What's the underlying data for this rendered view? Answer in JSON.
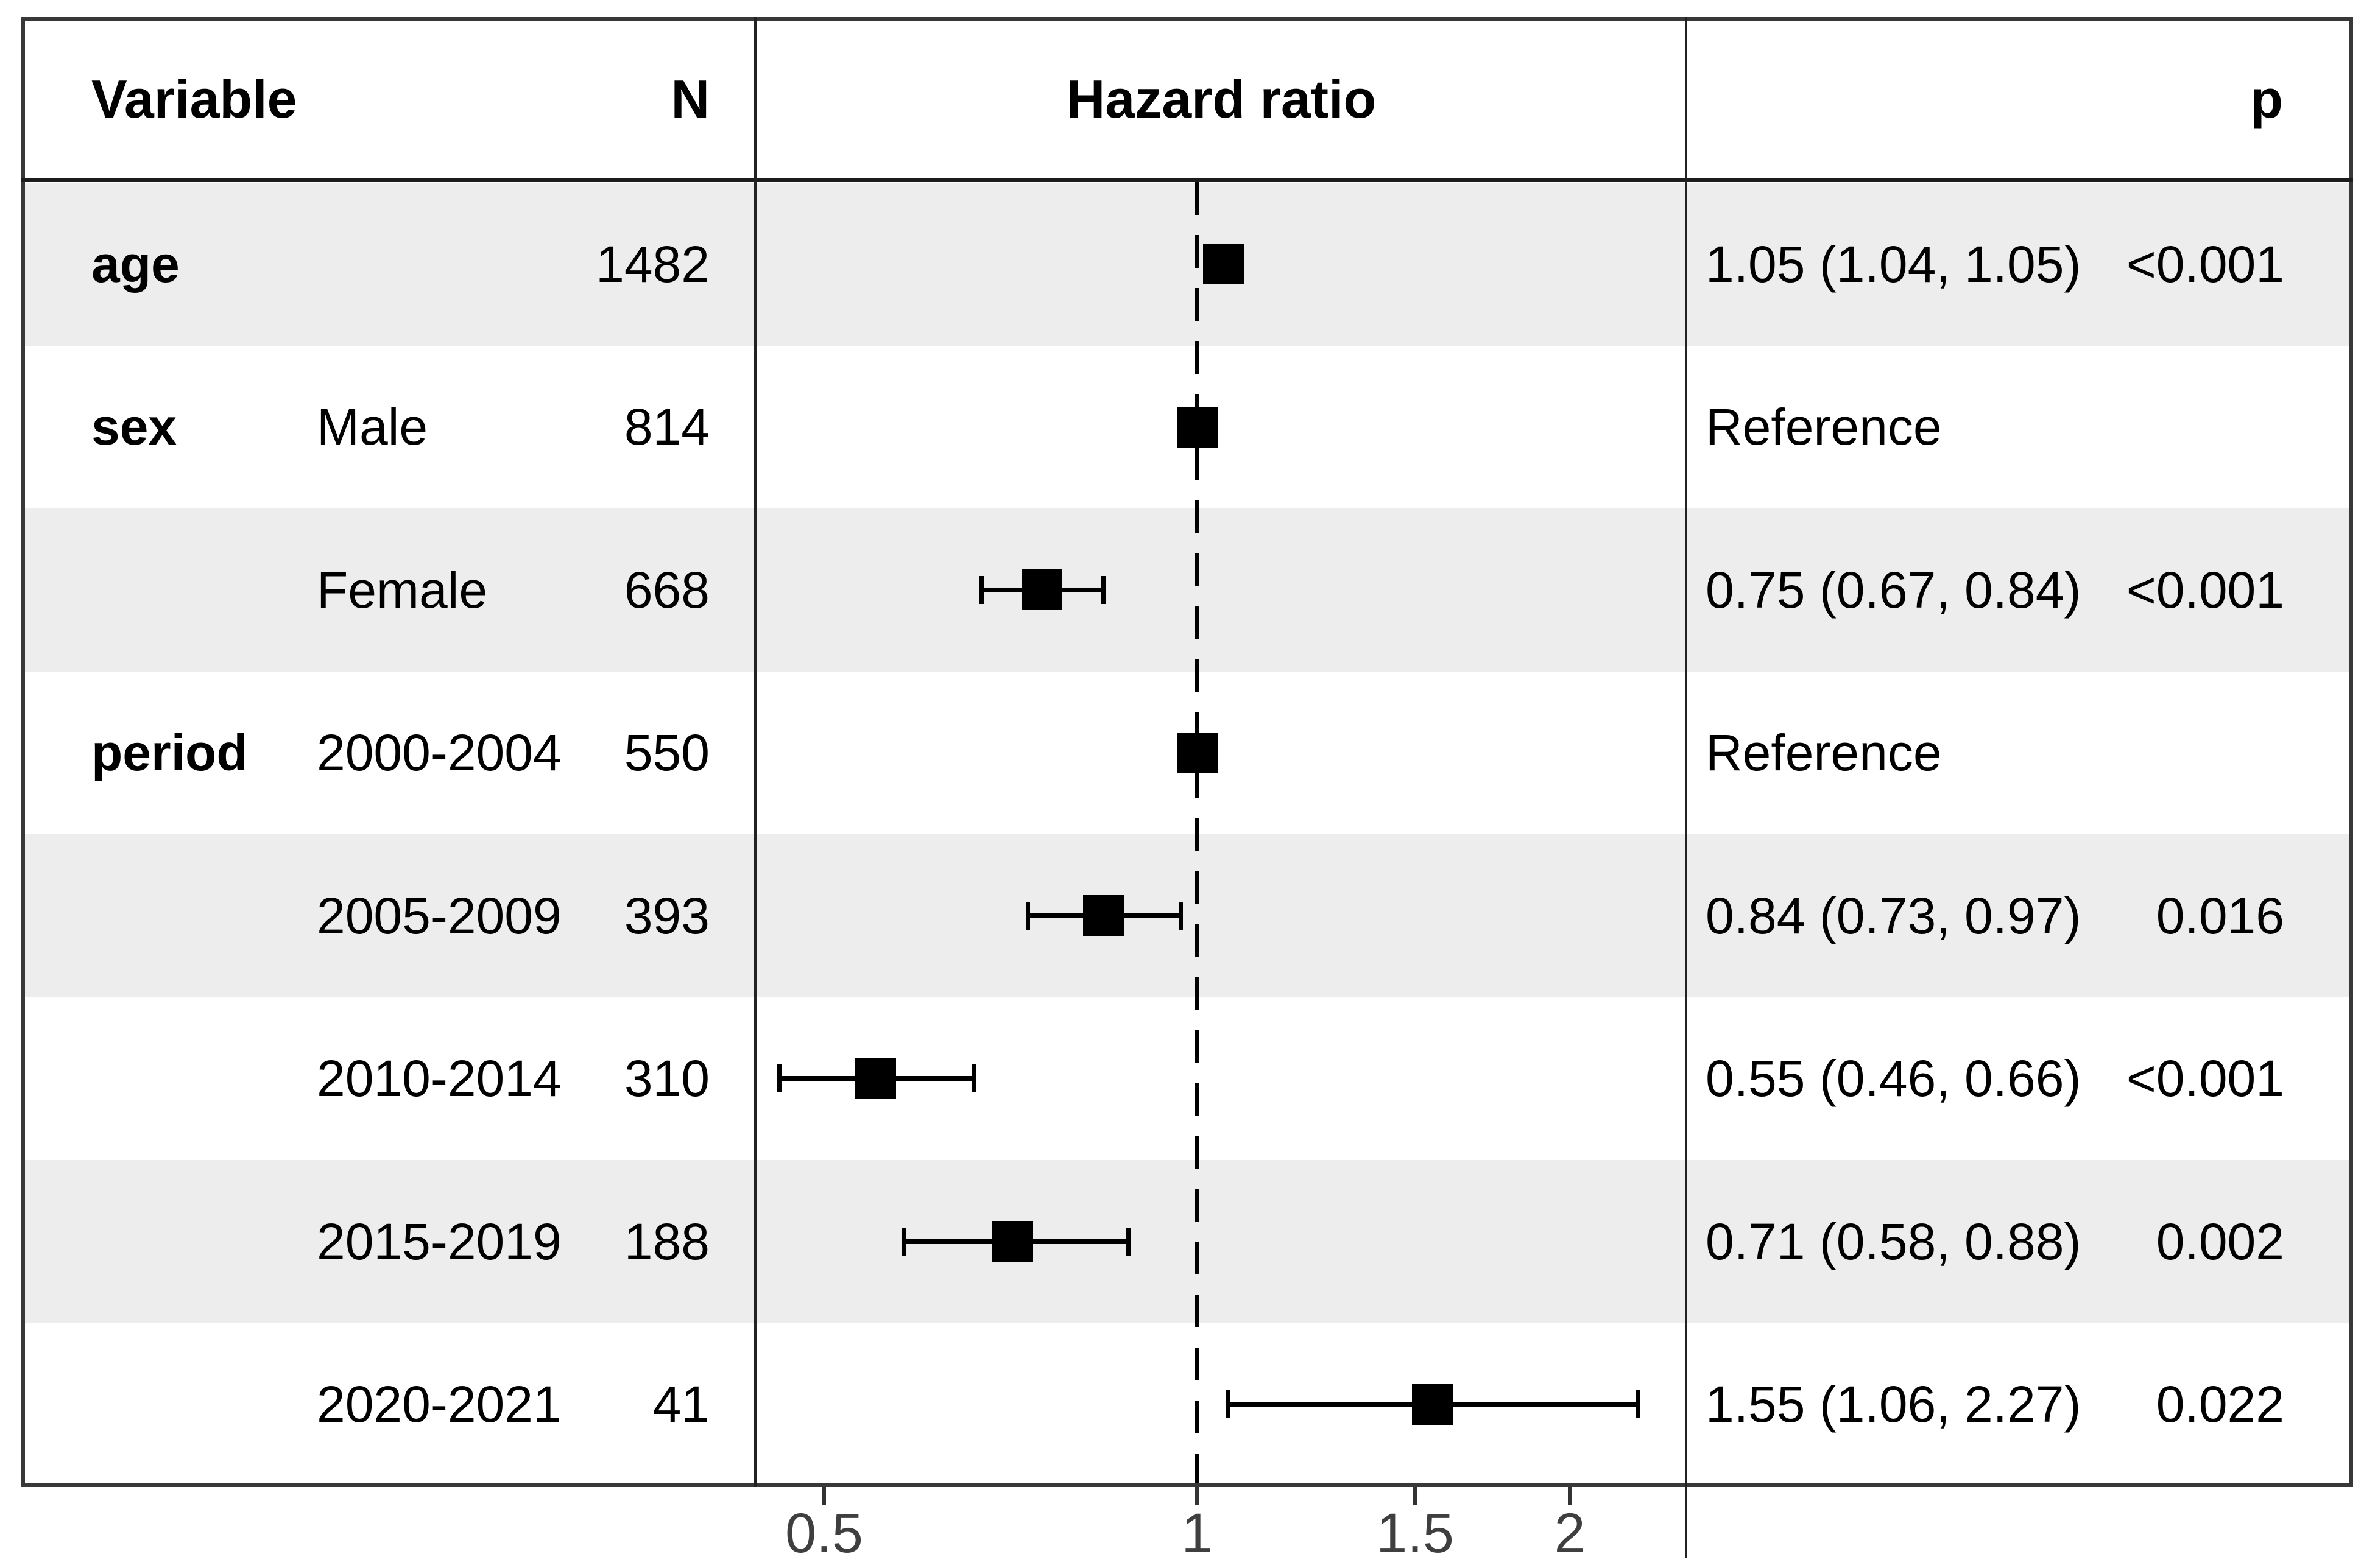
{
  "table": {
    "headers": {
      "variable": "Variable",
      "n": "N",
      "hazard": "Hazard ratio",
      "p": "p"
    },
    "rows": [
      {
        "variable": "age",
        "level": "",
        "n": "1482",
        "estimate": "1.05 (1.04, 1.05)",
        "p": "<0.001",
        "shaded": true
      },
      {
        "variable": "sex",
        "level": "Male",
        "n": "814",
        "estimate": "Reference",
        "p": "",
        "shaded": false
      },
      {
        "variable": "",
        "level": "Female",
        "n": "668",
        "estimate": "0.75 (0.67, 0.84)",
        "p": "<0.001",
        "shaded": true
      },
      {
        "variable": "period",
        "level": "2000-2004",
        "n": "550",
        "estimate": "Reference",
        "p": "",
        "shaded": false
      },
      {
        "variable": "",
        "level": "2005-2009",
        "n": "393",
        "estimate": "0.84 (0.73, 0.97)",
        "p": "0.016",
        "shaded": true
      },
      {
        "variable": "",
        "level": "2010-2014",
        "n": "310",
        "estimate": "0.55 (0.46, 0.66)",
        "p": "<0.001",
        "shaded": false
      },
      {
        "variable": "",
        "level": "2015-2019",
        "n": "188",
        "estimate": "0.71 (0.58, 0.88)",
        "p": "0.002",
        "shaded": true
      },
      {
        "variable": "",
        "level": "2020-2021",
        "n": "41",
        "estimate": "1.55 (1.06, 2.27)",
        "p": "0.022",
        "shaded": false
      }
    ]
  },
  "axis": {
    "tick_labels": [
      "0.5",
      "1",
      "1.5",
      "2"
    ],
    "reference_line_label": "1"
  },
  "colors": {
    "stripe": "#ededed",
    "marker": "#000000",
    "frame": "#383838",
    "tick_text": "#3f3f3f"
  },
  "chart_data": {
    "type": "scatter",
    "subtype": "forest_plot",
    "title": "",
    "xlabel": "Hazard ratio",
    "x_scale": "log",
    "x_ticks": [
      0.5,
      1,
      1.5,
      2
    ],
    "x_range": [
      0.44,
      2.49
    ],
    "reference_line": 1,
    "grid": false,
    "legend": "none",
    "rows": [
      {
        "group": "age",
        "label": "age",
        "n": 1482,
        "hr": 1.05,
        "ci_low": 1.04,
        "ci_high": 1.05,
        "p": "<0.001"
      },
      {
        "group": "sex",
        "label": "Male",
        "n": 814,
        "hr": 1.0,
        "reference": true
      },
      {
        "group": "sex",
        "label": "Female",
        "n": 668,
        "hr": 0.75,
        "ci_low": 0.67,
        "ci_high": 0.84,
        "p": "<0.001"
      },
      {
        "group": "period",
        "label": "2000-2004",
        "n": 550,
        "hr": 1.0,
        "reference": true
      },
      {
        "group": "period",
        "label": "2005-2009",
        "n": 393,
        "hr": 0.84,
        "ci_low": 0.73,
        "ci_high": 0.97,
        "p": "0.016"
      },
      {
        "group": "period",
        "label": "2010-2014",
        "n": 310,
        "hr": 0.55,
        "ci_low": 0.46,
        "ci_high": 0.66,
        "p": "<0.001"
      },
      {
        "group": "period",
        "label": "2015-2019",
        "n": 188,
        "hr": 0.71,
        "ci_low": 0.58,
        "ci_high": 0.88,
        "p": "0.002"
      },
      {
        "group": "period",
        "label": "2020-2021",
        "n": 41,
        "hr": 1.55,
        "ci_low": 1.06,
        "ci_high": 2.27,
        "p": "0.022"
      }
    ]
  }
}
